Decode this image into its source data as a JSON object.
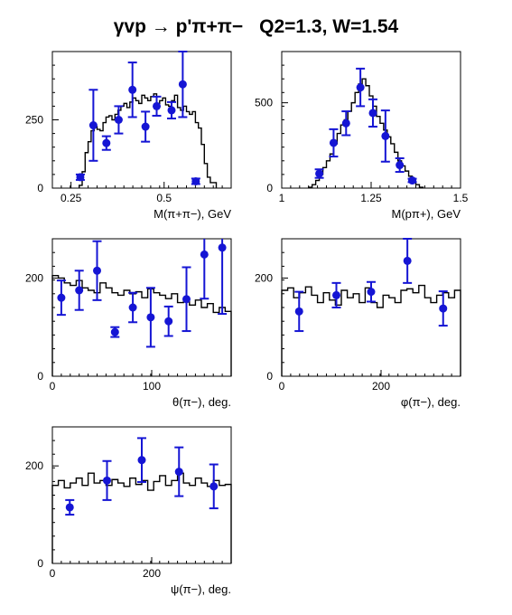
{
  "title": {
    "reaction": "γvp → p'π+π−",
    "kinematics": "Q2=1.3, W=1.54"
  },
  "colors": {
    "histogram": "#000000",
    "data_points": "#1515d4",
    "background": "#ffffff"
  },
  "chart_data": [
    {
      "type": "scatter",
      "xlabel": "M(π+π−), GeV",
      "xlim": [
        0.2,
        0.68
      ],
      "ylim": [
        0,
        500
      ],
      "xticks": [
        0.25,
        0.5
      ],
      "xtick_labels": [
        "0.25",
        "0.5"
      ],
      "yticks": [
        0,
        250
      ],
      "ytick_labels": [
        "0",
        "250"
      ],
      "grid": false,
      "histogram": [
        [
          0.272,
          10
        ],
        [
          0.28,
          60
        ],
        [
          0.288,
          130
        ],
        [
          0.296,
          170
        ],
        [
          0.304,
          210
        ],
        [
          0.312,
          225
        ],
        [
          0.32,
          215
        ],
        [
          0.328,
          210
        ],
        [
          0.336,
          240
        ],
        [
          0.344,
          260
        ],
        [
          0.352,
          265
        ],
        [
          0.36,
          250
        ],
        [
          0.368,
          270
        ],
        [
          0.376,
          285
        ],
        [
          0.384,
          300
        ],
        [
          0.392,
          310
        ],
        [
          0.4,
          295
        ],
        [
          0.408,
          315
        ],
        [
          0.416,
          330
        ],
        [
          0.424,
          320
        ],
        [
          0.432,
          310
        ],
        [
          0.44,
          340
        ],
        [
          0.448,
          330
        ],
        [
          0.456,
          320
        ],
        [
          0.464,
          335
        ],
        [
          0.472,
          345
        ],
        [
          0.48,
          310
        ],
        [
          0.488,
          320
        ],
        [
          0.496,
          330
        ],
        [
          0.504,
          305
        ],
        [
          0.512,
          300
        ],
        [
          0.52,
          320
        ],
        [
          0.528,
          340
        ],
        [
          0.536,
          295
        ],
        [
          0.544,
          285
        ],
        [
          0.552,
          300
        ],
        [
          0.56,
          280
        ],
        [
          0.568,
          270
        ],
        [
          0.576,
          280
        ],
        [
          0.584,
          240
        ],
        [
          0.592,
          220
        ],
        [
          0.6,
          160
        ],
        [
          0.608,
          90
        ],
        [
          0.616,
          40
        ],
        [
          0.624,
          20
        ],
        [
          0.632,
          20
        ]
      ],
      "points": [
        {
          "x": 0.275,
          "y": 40,
          "err": 10
        },
        {
          "x": 0.31,
          "y": 230,
          "err": 130
        },
        {
          "x": 0.345,
          "y": 165,
          "err": 25
        },
        {
          "x": 0.378,
          "y": 250,
          "err": 50
        },
        {
          "x": 0.415,
          "y": 360,
          "err": 100
        },
        {
          "x": 0.45,
          "y": 225,
          "err": 55
        },
        {
          "x": 0.48,
          "y": 300,
          "err": 35
        },
        {
          "x": 0.52,
          "y": 285,
          "err": 30
        },
        {
          "x": 0.55,
          "y": 380,
          "err": 120
        },
        {
          "x": 0.585,
          "y": 25,
          "err": 10
        }
      ]
    },
    {
      "type": "scatter",
      "xlabel": "M(pπ+), GeV",
      "xlim": [
        1.0,
        1.5
      ],
      "ylim": [
        0,
        800
      ],
      "xticks": [
        1.0,
        1.25,
        1.5
      ],
      "xtick_labels": [
        "1",
        "1.25",
        "1.5"
      ],
      "yticks": [
        0,
        500
      ],
      "ytick_labels": [
        "0",
        "500"
      ],
      "grid": false,
      "histogram": [
        [
          1.075,
          5
        ],
        [
          1.085,
          20
        ],
        [
          1.095,
          45
        ],
        [
          1.105,
          80
        ],
        [
          1.115,
          120
        ],
        [
          1.125,
          160
        ],
        [
          1.135,
          200
        ],
        [
          1.145,
          260
        ],
        [
          1.155,
          320
        ],
        [
          1.165,
          370
        ],
        [
          1.175,
          400
        ],
        [
          1.185,
          450
        ],
        [
          1.195,
          500
        ],
        [
          1.205,
          560
        ],
        [
          1.215,
          610
        ],
        [
          1.225,
          640
        ],
        [
          1.235,
          600
        ],
        [
          1.245,
          540
        ],
        [
          1.255,
          480
        ],
        [
          1.265,
          420
        ],
        [
          1.275,
          380
        ],
        [
          1.285,
          340
        ],
        [
          1.295,
          300
        ],
        [
          1.305,
          260
        ],
        [
          1.315,
          210
        ],
        [
          1.325,
          160
        ],
        [
          1.335,
          130
        ],
        [
          1.345,
          100
        ],
        [
          1.355,
          70
        ],
        [
          1.365,
          40
        ],
        [
          1.375,
          20
        ],
        [
          1.385,
          5
        ]
      ],
      "points": [
        {
          "x": 1.105,
          "y": 85,
          "err": 25
        },
        {
          "x": 1.145,
          "y": 265,
          "err": 80
        },
        {
          "x": 1.18,
          "y": 380,
          "err": 70
        },
        {
          "x": 1.22,
          "y": 590,
          "err": 110
        },
        {
          "x": 1.255,
          "y": 440,
          "err": 80
        },
        {
          "x": 1.29,
          "y": 305,
          "err": 150
        },
        {
          "x": 1.33,
          "y": 135,
          "err": 40
        },
        {
          "x": 1.365,
          "y": 45,
          "err": 10
        }
      ]
    },
    {
      "type": "scatter",
      "xlabel": "θ(π−), deg.",
      "xlim": [
        0,
        180
      ],
      "ylim": [
        0,
        280
      ],
      "xticks": [
        0,
        100
      ],
      "xtick_labels": [
        "0",
        "100"
      ],
      "yticks": [
        0,
        200
      ],
      "ytick_labels": [
        "0",
        "200"
      ],
      "grid": false,
      "histogram": [
        [
          0,
          205
        ],
        [
          6,
          200
        ],
        [
          12,
          190
        ],
        [
          18,
          185
        ],
        [
          24,
          195
        ],
        [
          30,
          180
        ],
        [
          36,
          175
        ],
        [
          42,
          170
        ],
        [
          48,
          190
        ],
        [
          54,
          180
        ],
        [
          60,
          170
        ],
        [
          66,
          165
        ],
        [
          72,
          175
        ],
        [
          78,
          168
        ],
        [
          84,
          172
        ],
        [
          90,
          160
        ],
        [
          96,
          178
        ],
        [
          102,
          170
        ],
        [
          108,
          165
        ],
        [
          114,
          158
        ],
        [
          120,
          168
        ],
        [
          126,
          150
        ],
        [
          132,
          160
        ],
        [
          138,
          145
        ],
        [
          144,
          155
        ],
        [
          150,
          140
        ],
        [
          156,
          148
        ],
        [
          162,
          130
        ],
        [
          168,
          140
        ],
        [
          174,
          132
        ]
      ],
      "points": [
        {
          "x": 9,
          "y": 160,
          "err": 35
        },
        {
          "x": 27,
          "y": 175,
          "err": 40
        },
        {
          "x": 45,
          "y": 215,
          "err": 60
        },
        {
          "x": 63,
          "y": 90,
          "err": 10
        },
        {
          "x": 81,
          "y": 140,
          "err": 30
        },
        {
          "x": 99,
          "y": 120,
          "err": 60
        },
        {
          "x": 117,
          "y": 112,
          "err": 30
        },
        {
          "x": 135,
          "y": 157,
          "err": 65
        },
        {
          "x": 153,
          "y": 248,
          "err": 90
        },
        {
          "x": 171,
          "y": 262,
          "err": 135
        }
      ]
    },
    {
      "type": "scatter",
      "xlabel": "φ(π−), deg.",
      "xlim": [
        0,
        360
      ],
      "ylim": [
        0,
        280
      ],
      "xticks": [
        0,
        200
      ],
      "xtick_labels": [
        "0",
        "200"
      ],
      "yticks": [
        0,
        200
      ],
      "ytick_labels": [
        "0",
        "200"
      ],
      "grid": false,
      "histogram": [
        [
          0,
          175
        ],
        [
          12,
          180
        ],
        [
          24,
          160
        ],
        [
          36,
          170
        ],
        [
          48,
          182
        ],
        [
          60,
          165
        ],
        [
          72,
          150
        ],
        [
          84,
          170
        ],
        [
          96,
          155
        ],
        [
          108,
          145
        ],
        [
          120,
          175
        ],
        [
          132,
          160
        ],
        [
          144,
          168
        ],
        [
          156,
          150
        ],
        [
          168,
          180
        ],
        [
          180,
          150
        ],
        [
          192,
          140
        ],
        [
          204,
          165
        ],
        [
          216,
          160
        ],
        [
          228,
          150
        ],
        [
          240,
          175
        ],
        [
          252,
          178
        ],
        [
          264,
          170
        ],
        [
          276,
          185
        ],
        [
          288,
          160
        ],
        [
          300,
          150
        ],
        [
          312,
          165
        ],
        [
          324,
          170
        ],
        [
          336,
          160
        ],
        [
          348,
          175
        ]
      ],
      "points": [
        {
          "x": 35,
          "y": 132,
          "err": 40
        },
        {
          "x": 110,
          "y": 165,
          "err": 25
        },
        {
          "x": 180,
          "y": 172,
          "err": 20
        },
        {
          "x": 253,
          "y": 235,
          "err": 45
        },
        {
          "x": 325,
          "y": 138,
          "err": 35
        }
      ]
    },
    {
      "type": "scatter",
      "xlabel": "ψ(π−), deg.",
      "xlim": [
        0,
        360
      ],
      "ylim": [
        0,
        280
      ],
      "xticks": [
        0,
        200
      ],
      "xtick_labels": [
        "0",
        "200"
      ],
      "yticks": [
        0,
        200
      ],
      "ytick_labels": [
        "0",
        "200"
      ],
      "grid": false,
      "histogram": [
        [
          0,
          160
        ],
        [
          12,
          170
        ],
        [
          24,
          155
        ],
        [
          36,
          165
        ],
        [
          48,
          175
        ],
        [
          60,
          160
        ],
        [
          72,
          185
        ],
        [
          84,
          165
        ],
        [
          96,
          170
        ],
        [
          108,
          160
        ],
        [
          120,
          172
        ],
        [
          132,
          165
        ],
        [
          144,
          158
        ],
        [
          156,
          175
        ],
        [
          168,
          162
        ],
        [
          180,
          170
        ],
        [
          192,
          150
        ],
        [
          204,
          168
        ],
        [
          216,
          180
        ],
        [
          228,
          160
        ],
        [
          240,
          170
        ],
        [
          252,
          185
        ],
        [
          264,
          165
        ],
        [
          276,
          160
        ],
        [
          288,
          175
        ],
        [
          300,
          165
        ],
        [
          312,
          158
        ],
        [
          324,
          170
        ],
        [
          336,
          160
        ],
        [
          348,
          162
        ]
      ],
      "points": [
        {
          "x": 35,
          "y": 115,
          "err": 15
        },
        {
          "x": 110,
          "y": 170,
          "err": 40
        },
        {
          "x": 180,
          "y": 212,
          "err": 45
        },
        {
          "x": 255,
          "y": 188,
          "err": 50
        },
        {
          "x": 325,
          "y": 158,
          "err": 45
        }
      ]
    }
  ]
}
